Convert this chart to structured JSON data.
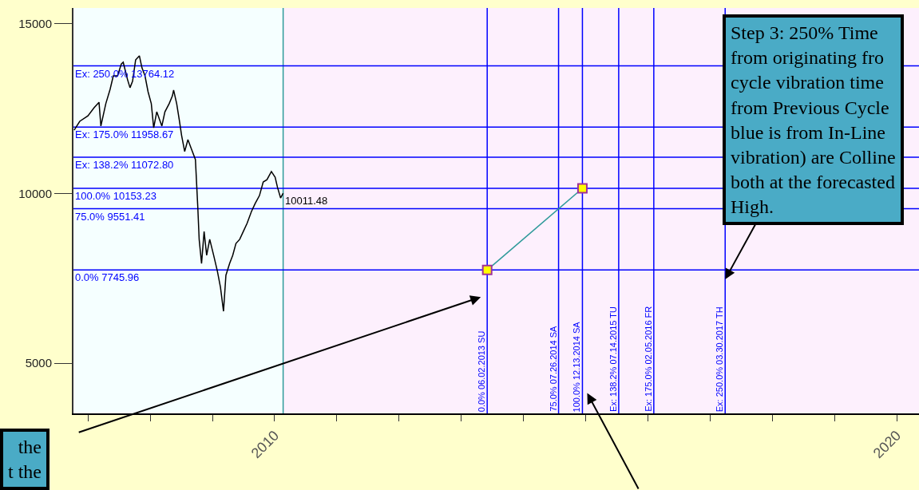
{
  "chart_data": {
    "type": "line",
    "xlim": [
      "2006-10-08",
      "2020-05-11"
    ],
    "ylim": [
      3520,
      15470
    ],
    "xticks": [
      {
        "value": "2007",
        "label": null
      },
      {
        "value": "2008",
        "label": null
      },
      {
        "value": "2009",
        "label": null
      },
      "2010",
      {
        "value": "2011",
        "label": null
      },
      {
        "value": "2012",
        "label": null
      },
      {
        "value": "2013",
        "label": null
      },
      {
        "value": "2014",
        "label": null
      },
      {
        "value": "2015",
        "label": null
      },
      {
        "value": "2016",
        "label": null
      },
      {
        "value": "2017",
        "label": null
      },
      {
        "value": "2018",
        "label": null
      },
      {
        "value": "2019",
        "label": null
      },
      "2020"
    ],
    "yticks": [
      5000,
      10000,
      15000
    ],
    "grid": false,
    "line_style": "solid",
    "series": [
      {
        "color": "#000000",
        "marker": "none",
        "x": [
          "2006-10-12",
          "2006-11-14",
          "2007-01-01",
          "2007-02-06",
          "2007-03-07",
          "2007-03-18",
          "2007-04-16",
          "2007-05-11",
          "2007-05-30",
          "2007-06-24",
          "2007-07-16",
          "2007-07-27",
          "2007-08-22",
          "2007-09-05",
          "2007-09-20",
          "2007-10-08",
          "2007-10-30",
          "2007-11-14",
          "2007-12-02",
          "2007-12-20",
          "2008-01-08",
          "2008-01-22",
          "2008-02-09",
          "2008-03-10",
          "2008-03-28",
          "2008-04-22",
          "2008-05-11",
          "2008-05-18",
          "2008-06-05",
          "2008-06-20",
          "2008-07-04",
          "2008-07-22",
          "2008-08-10",
          "2008-08-28",
          "2008-09-23",
          "2008-10-07",
          "2008-10-15",
          "2008-10-29",
          "2008-11-13",
          "2008-11-28",
          "2008-12-16",
          "2009-01-08",
          "2009-01-30",
          "2009-02-17",
          "2009-03-07",
          "2009-03-21",
          "2009-04-12",
          "2009-04-30",
          "2009-05-19",
          "2009-06-10",
          "2009-07-01",
          "2009-07-23",
          "2009-08-18",
          "2009-09-09",
          "2009-10-04",
          "2009-10-26",
          "2009-11-17",
          "2009-12-13",
          "2010-01-04",
          "2010-01-18",
          "2010-02-05",
          "2010-02-20"
        ],
        "values": [
          11870,
          12130,
          12290,
          12530,
          12690,
          11990,
          12650,
          13070,
          13470,
          13470,
          13820,
          13870,
          13350,
          13120,
          13310,
          13940,
          14060,
          13710,
          13470,
          13000,
          12650,
          11940,
          12410,
          11990,
          12410,
          12650,
          12880,
          13050,
          12650,
          12180,
          11710,
          11240,
          11590,
          11350,
          11000,
          9590,
          8650,
          7940,
          8880,
          8180,
          8650,
          8180,
          7710,
          7240,
          6530,
          7590,
          7940,
          8180,
          8530,
          8650,
          8880,
          9120,
          9470,
          9710,
          9940,
          10340,
          10410,
          10650,
          10480,
          10180,
          9870,
          10011.48
        ]
      },
      {
        "color": "#2e9a9a",
        "marker": "square",
        "x": [
          "2013-06-02",
          "2014-12-13"
        ],
        "values": [
          7745.96,
          10153.23
        ]
      }
    ],
    "bands": [
      {
        "axis": "x",
        "from": "2006-10-08",
        "to": "2010-02-20",
        "color": "#f5ffff"
      },
      {
        "axis": "x",
        "from": "2010-02-20",
        "to": "2020-05-11",
        "color": "#fdf0fd"
      }
    ],
    "ref_lines": [
      {
        "axis": "x",
        "value": "2010-02-20",
        "color": "#2e9a9a"
      },
      {
        "axis": "y",
        "value": 13764.12,
        "label": "Ex: 250.0% 13764.12",
        "color": "#0000ff"
      },
      {
        "axis": "y",
        "value": 11958.67,
        "label": "Ex: 175.0% 11958.67",
        "color": "#0000ff"
      },
      {
        "axis": "y",
        "value": 11072.8,
        "label": "Ex: 138.2% 11072.80",
        "color": "#0000ff"
      },
      {
        "axis": "y",
        "value": 10153.23,
        "label": "100.0% 10153.23",
        "color": "#0000ff"
      },
      {
        "axis": "y",
        "value": 9551.41,
        "label": "75.0% 9551.41",
        "color": "#0000ff"
      },
      {
        "axis": "y",
        "value": 7745.96,
        "label": "0.0% 7745.96",
        "color": "#0000ff"
      },
      {
        "axis": "x",
        "value": "2013-06-02",
        "label": "0.0% 06.02.2013 SU",
        "color": "#0000ff"
      },
      {
        "axis": "x",
        "value": "2014-07-26",
        "label": "75.0% 07.26.2014 SA",
        "color": "#0000ff"
      },
      {
        "axis": "x",
        "value": "2014-12-13",
        "label": "100.0% 12.13.2014 SA",
        "color": "#0000ff"
      },
      {
        "axis": "x",
        "value": "2015-07-14",
        "label": "Ex: 138.2% 07.14.2015 TU",
        "color": "#0000ff"
      },
      {
        "axis": "x",
        "value": "2016-02-05",
        "label": "Ex: 175.0% 02.05.2016 FR",
        "color": "#0000ff"
      },
      {
        "axis": "x",
        "value": "2017-03-30",
        "label": "Ex: 250.0% 03.30.2017 TH",
        "color": "#0000ff"
      }
    ],
    "annotations": [
      {
        "text": "10011.48",
        "x": "2010-02-20",
        "y": 10011.48
      },
      {
        "text": "Step 3: 250% Time\nfrom originating fro\ncycle vibration time\nfrom Previous Cycle\nblue is from In-Line\nvibration) are Colline\nboth at the forecasted\nHigh.",
        "x": "2017-03-30",
        "y": 7470
      },
      "the\nt the"
    ]
  }
}
